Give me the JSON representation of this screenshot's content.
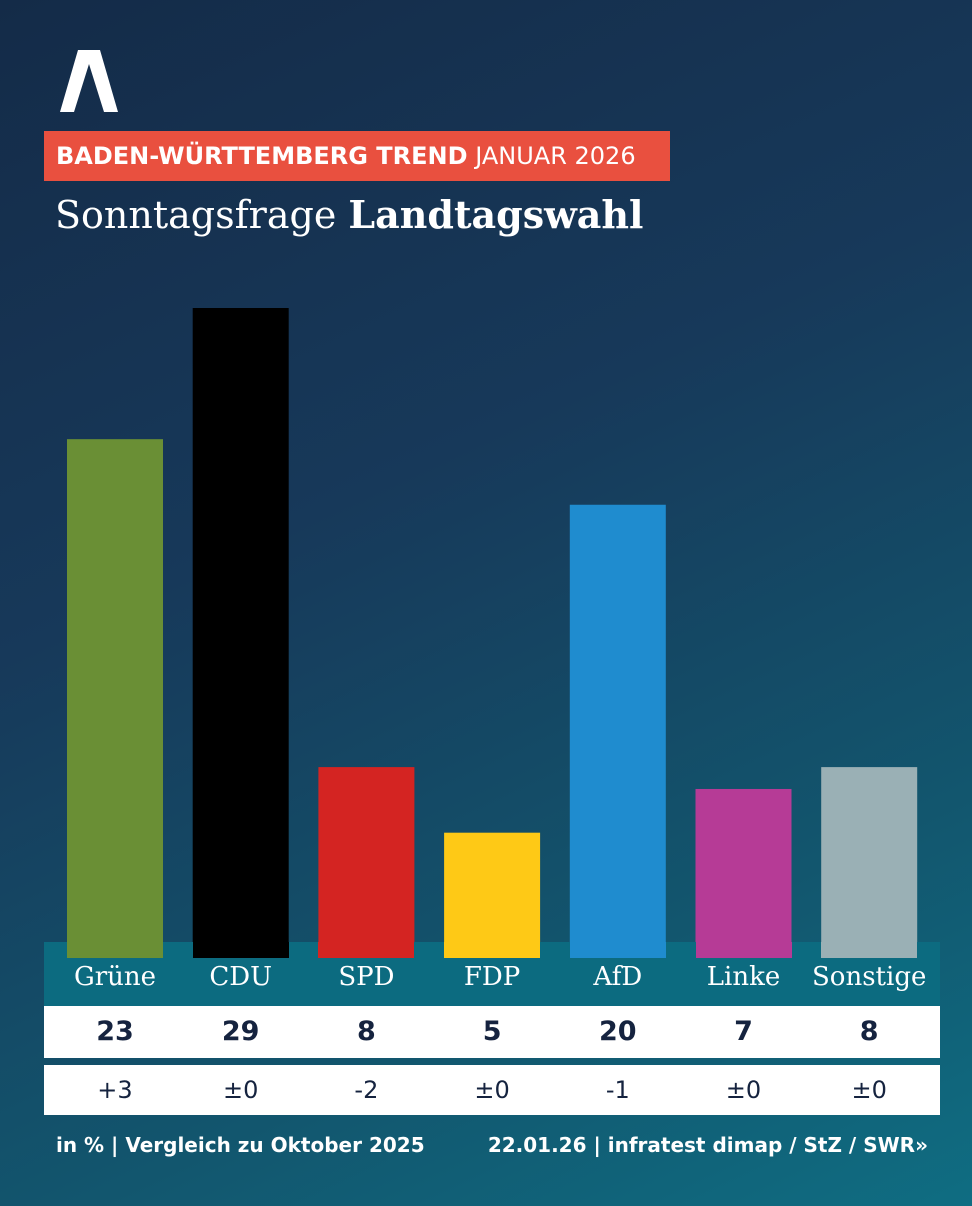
{
  "header": {
    "trend_bold": "BADEN-WÜRTTEMBERG TREND",
    "trend_regular": "JANUAR 2026",
    "title_regular": "Sonntagsfrage",
    "title_bold": "Landtagswahl"
  },
  "chart_data": {
    "type": "bar",
    "title": "Sonntagsfrage Landtagswahl",
    "subtitle": "BADEN-WÜRTTEMBERG TREND JANUAR 2026",
    "categories": [
      "Grüne",
      "CDU",
      "SPD",
      "FDP",
      "AfD",
      "Linke",
      "Sonstige"
    ],
    "values": [
      23,
      29,
      8,
      5,
      20,
      7,
      8
    ],
    "value_labels": [
      "23",
      "29",
      "8",
      "5",
      "20",
      "7",
      "8"
    ],
    "changes": [
      "+3",
      "±0",
      "-2",
      "±0",
      "-1",
      "±0",
      "±0"
    ],
    "colors": [
      "#6a8f35",
      "#000000",
      "#d42422",
      "#fec916",
      "#1f8ccf",
      "#b63b96",
      "#9ab0b5"
    ],
    "ylabel": "in %",
    "ylim": [
      0,
      30
    ]
  },
  "footer": {
    "left": "in % | Vergleich zu Oktober 2025",
    "right": "22.01.26 | infratest dimap / StZ /",
    "brand": "SWR",
    "brand_icon": "double-chevron-right-icon"
  },
  "logo": {
    "name": "logo-icon",
    "color": "#ffffff"
  }
}
